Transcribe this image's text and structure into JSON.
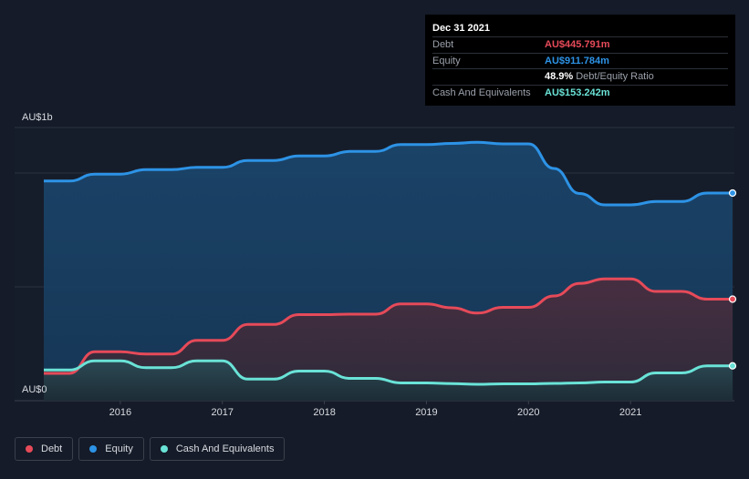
{
  "tooltip": {
    "date": "Dec 31 2021",
    "rows": [
      {
        "label": "Debt",
        "value": "AU$445.791m",
        "color": "#e64a59"
      },
      {
        "label": "Equity",
        "value": "AU$911.784m",
        "color": "#2d93e6"
      },
      {
        "ratio": "48.9%",
        "ratio_label": "Debt/Equity Ratio"
      },
      {
        "label": "Cash And Equivalents",
        "value": "AU$153.242m",
        "color": "#6ae3d7"
      }
    ]
  },
  "legend": [
    {
      "label": "Debt",
      "color": "#e64a59"
    },
    {
      "label": "Equity",
      "color": "#2d93e6"
    },
    {
      "label": "Cash And Equivalents",
      "color": "#6ae3d7"
    }
  ],
  "chart_data": {
    "type": "area",
    "y_axis_labels": {
      "top": "AU$1b",
      "bottom": "AU$0"
    },
    "ylim": [
      0,
      1200
    ],
    "xlim": [
      2015.25,
      2022.0
    ],
    "x_ticks": [
      2016,
      2017,
      2018,
      2019,
      2020,
      2021
    ],
    "x_tick_labels": [
      "2016",
      "2017",
      "2018",
      "2019",
      "2020",
      "2021"
    ],
    "series": [
      {
        "name": "Equity",
        "color": "#2d93e6",
        "points": [
          [
            2015.25,
            965
          ],
          [
            2015.5,
            965
          ],
          [
            2015.75,
            995
          ],
          [
            2016.0,
            995
          ],
          [
            2016.25,
            1015
          ],
          [
            2016.5,
            1015
          ],
          [
            2016.75,
            1025
          ],
          [
            2017.0,
            1025
          ],
          [
            2017.25,
            1055
          ],
          [
            2017.5,
            1055
          ],
          [
            2017.75,
            1075
          ],
          [
            2018.0,
            1075
          ],
          [
            2018.25,
            1095
          ],
          [
            2018.5,
            1095
          ],
          [
            2018.75,
            1125
          ],
          [
            2019.0,
            1125
          ],
          [
            2019.25,
            1130
          ],
          [
            2019.5,
            1135
          ],
          [
            2019.75,
            1128
          ],
          [
            2020.0,
            1128
          ],
          [
            2020.25,
            1020
          ],
          [
            2020.5,
            910
          ],
          [
            2020.75,
            860
          ],
          [
            2021.0,
            860
          ],
          [
            2021.25,
            875
          ],
          [
            2021.5,
            875
          ],
          [
            2021.75,
            912
          ],
          [
            2022.0,
            912
          ]
        ]
      },
      {
        "name": "Debt",
        "color": "#e64a59",
        "points": [
          [
            2015.25,
            120
          ],
          [
            2015.5,
            120
          ],
          [
            2015.75,
            215
          ],
          [
            2016.0,
            215
          ],
          [
            2016.25,
            205
          ],
          [
            2016.5,
            205
          ],
          [
            2016.75,
            265
          ],
          [
            2017.0,
            265
          ],
          [
            2017.25,
            335
          ],
          [
            2017.5,
            335
          ],
          [
            2017.75,
            378
          ],
          [
            2018.0,
            378
          ],
          [
            2018.25,
            380
          ],
          [
            2018.5,
            380
          ],
          [
            2018.75,
            425
          ],
          [
            2019.0,
            425
          ],
          [
            2019.25,
            408
          ],
          [
            2019.5,
            385
          ],
          [
            2019.75,
            410
          ],
          [
            2020.0,
            410
          ],
          [
            2020.25,
            460
          ],
          [
            2020.5,
            515
          ],
          [
            2020.75,
            535
          ],
          [
            2021.0,
            535
          ],
          [
            2021.25,
            480
          ],
          [
            2021.5,
            480
          ],
          [
            2021.75,
            446
          ],
          [
            2022.0,
            446
          ]
        ]
      },
      {
        "name": "Cash And Equivalents",
        "color": "#6ae3d7",
        "points": [
          [
            2015.25,
            135
          ],
          [
            2015.5,
            135
          ],
          [
            2015.75,
            175
          ],
          [
            2016.0,
            175
          ],
          [
            2016.25,
            145
          ],
          [
            2016.5,
            145
          ],
          [
            2016.75,
            175
          ],
          [
            2017.0,
            175
          ],
          [
            2017.25,
            95
          ],
          [
            2017.5,
            95
          ],
          [
            2017.75,
            130
          ],
          [
            2018.0,
            130
          ],
          [
            2018.25,
            98
          ],
          [
            2018.5,
            98
          ],
          [
            2018.75,
            78
          ],
          [
            2019.0,
            78
          ],
          [
            2019.25,
            75
          ],
          [
            2019.5,
            72
          ],
          [
            2019.75,
            74
          ],
          [
            2020.0,
            74
          ],
          [
            2020.25,
            76
          ],
          [
            2020.5,
            78
          ],
          [
            2020.75,
            82
          ],
          [
            2021.0,
            82
          ],
          [
            2021.25,
            122
          ],
          [
            2021.5,
            122
          ],
          [
            2021.75,
            153
          ],
          [
            2022.0,
            153
          ]
        ]
      }
    ]
  }
}
